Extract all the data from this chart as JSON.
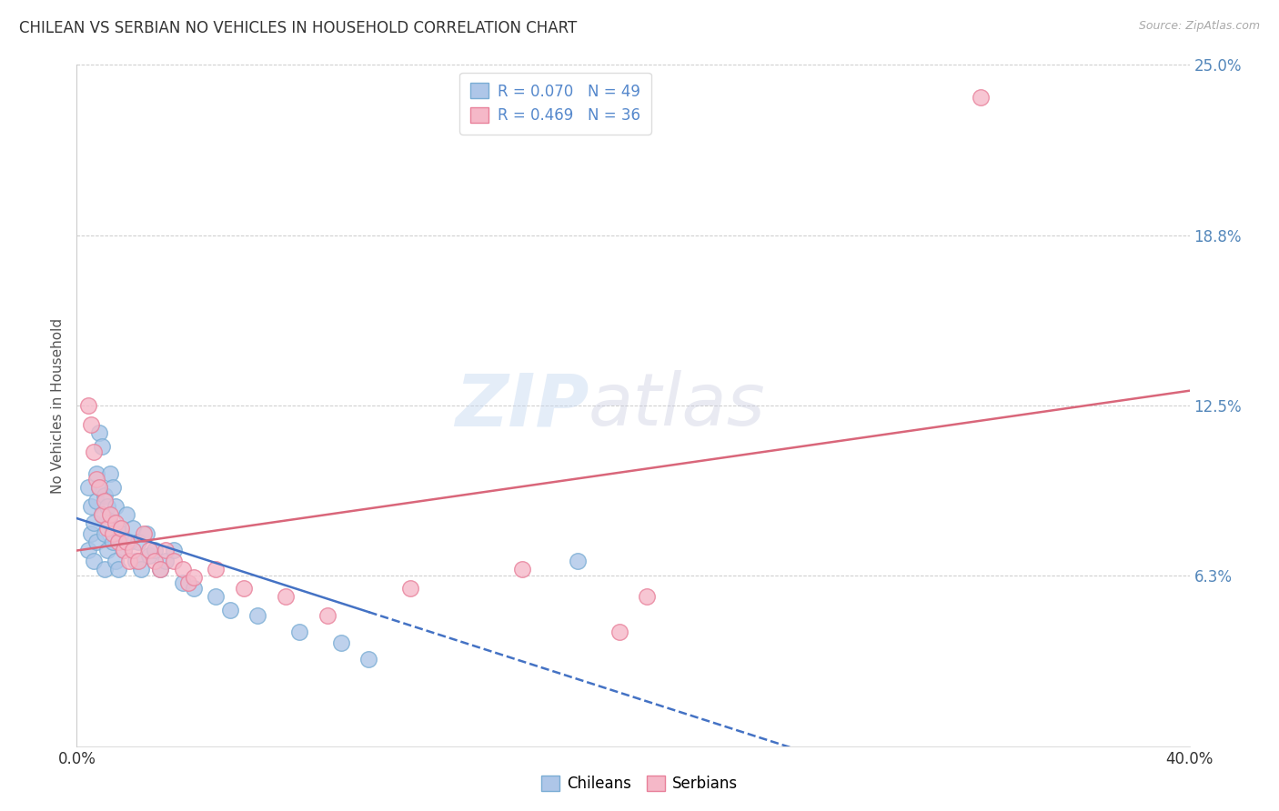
{
  "title": "CHILEAN VS SERBIAN NO VEHICLES IN HOUSEHOLD CORRELATION CHART",
  "source": "Source: ZipAtlas.com",
  "ylabel": "No Vehicles in Household",
  "xlim": [
    0.0,
    0.4
  ],
  "ylim": [
    0.0,
    0.25
  ],
  "yticks": [
    0.0,
    0.0625,
    0.125,
    0.1875,
    0.25
  ],
  "ytick_labels": [
    "",
    "6.3%",
    "12.5%",
    "18.8%",
    "25.0%"
  ],
  "xticks": [
    0.0,
    0.1,
    0.2,
    0.3,
    0.4
  ],
  "xtick_labels": [
    "0.0%",
    "",
    "",
    "",
    "40.0%"
  ],
  "watermark_line1": "ZIP",
  "watermark_line2": "atlas",
  "chilean_color": "#aec6e8",
  "chilean_edge": "#7aadd4",
  "serbian_color": "#f5b8c8",
  "serbian_edge": "#e8809a",
  "trend_chilean_color": "#4472c4",
  "trend_serbian_color": "#d9667a",
  "background_color": "#ffffff",
  "grid_color": "#cccccc",
  "chilean_x": [
    0.004,
    0.004,
    0.005,
    0.005,
    0.006,
    0.006,
    0.007,
    0.007,
    0.007,
    0.008,
    0.008,
    0.009,
    0.009,
    0.01,
    0.01,
    0.01,
    0.011,
    0.011,
    0.012,
    0.012,
    0.013,
    0.013,
    0.014,
    0.014,
    0.015,
    0.015,
    0.016,
    0.017,
    0.018,
    0.019,
    0.02,
    0.021,
    0.022,
    0.023,
    0.025,
    0.026,
    0.028,
    0.03,
    0.032,
    0.035,
    0.038,
    0.042,
    0.05,
    0.055,
    0.065,
    0.08,
    0.095,
    0.105,
    0.18
  ],
  "chilean_y": [
    0.095,
    0.072,
    0.088,
    0.078,
    0.082,
    0.068,
    0.1,
    0.09,
    0.075,
    0.115,
    0.095,
    0.11,
    0.085,
    0.092,
    0.078,
    0.065,
    0.088,
    0.072,
    0.1,
    0.082,
    0.095,
    0.075,
    0.088,
    0.068,
    0.08,
    0.065,
    0.078,
    0.072,
    0.085,
    0.075,
    0.08,
    0.068,
    0.075,
    0.065,
    0.078,
    0.07,
    0.072,
    0.065,
    0.068,
    0.072,
    0.06,
    0.058,
    0.055,
    0.05,
    0.048,
    0.042,
    0.038,
    0.032,
    0.068
  ],
  "chilean_trend_solid_end": 0.105,
  "serbian_x": [
    0.004,
    0.005,
    0.006,
    0.007,
    0.008,
    0.009,
    0.01,
    0.011,
    0.012,
    0.013,
    0.014,
    0.015,
    0.016,
    0.017,
    0.018,
    0.019,
    0.02,
    0.022,
    0.024,
    0.026,
    0.028,
    0.03,
    0.032,
    0.035,
    0.038,
    0.04,
    0.042,
    0.05,
    0.06,
    0.075,
    0.09,
    0.12,
    0.16,
    0.195,
    0.205,
    0.325
  ],
  "serbian_y": [
    0.125,
    0.118,
    0.108,
    0.098,
    0.095,
    0.085,
    0.09,
    0.08,
    0.085,
    0.078,
    0.082,
    0.075,
    0.08,
    0.072,
    0.075,
    0.068,
    0.072,
    0.068,
    0.078,
    0.072,
    0.068,
    0.065,
    0.072,
    0.068,
    0.065,
    0.06,
    0.062,
    0.065,
    0.058,
    0.055,
    0.048,
    0.058,
    0.065,
    0.042,
    0.055,
    0.238
  ],
  "legend_r1": "R = 0.070",
  "legend_n1": "N = 49",
  "legend_r2": "R = 0.469",
  "legend_n2": "N = 36"
}
